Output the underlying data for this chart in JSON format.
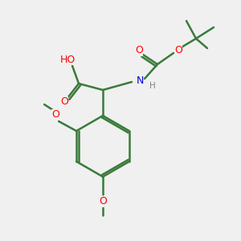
{
  "bg_color": "#f0f0f0",
  "bond_color": "#3a7a3a",
  "bond_width": 1.8,
  "atom_colors": {
    "O": "#ff0000",
    "N": "#0000cc",
    "C": "#3a7a3a",
    "H": "#808080"
  },
  "font_size_atom": 9,
  "font_size_small": 7.5
}
